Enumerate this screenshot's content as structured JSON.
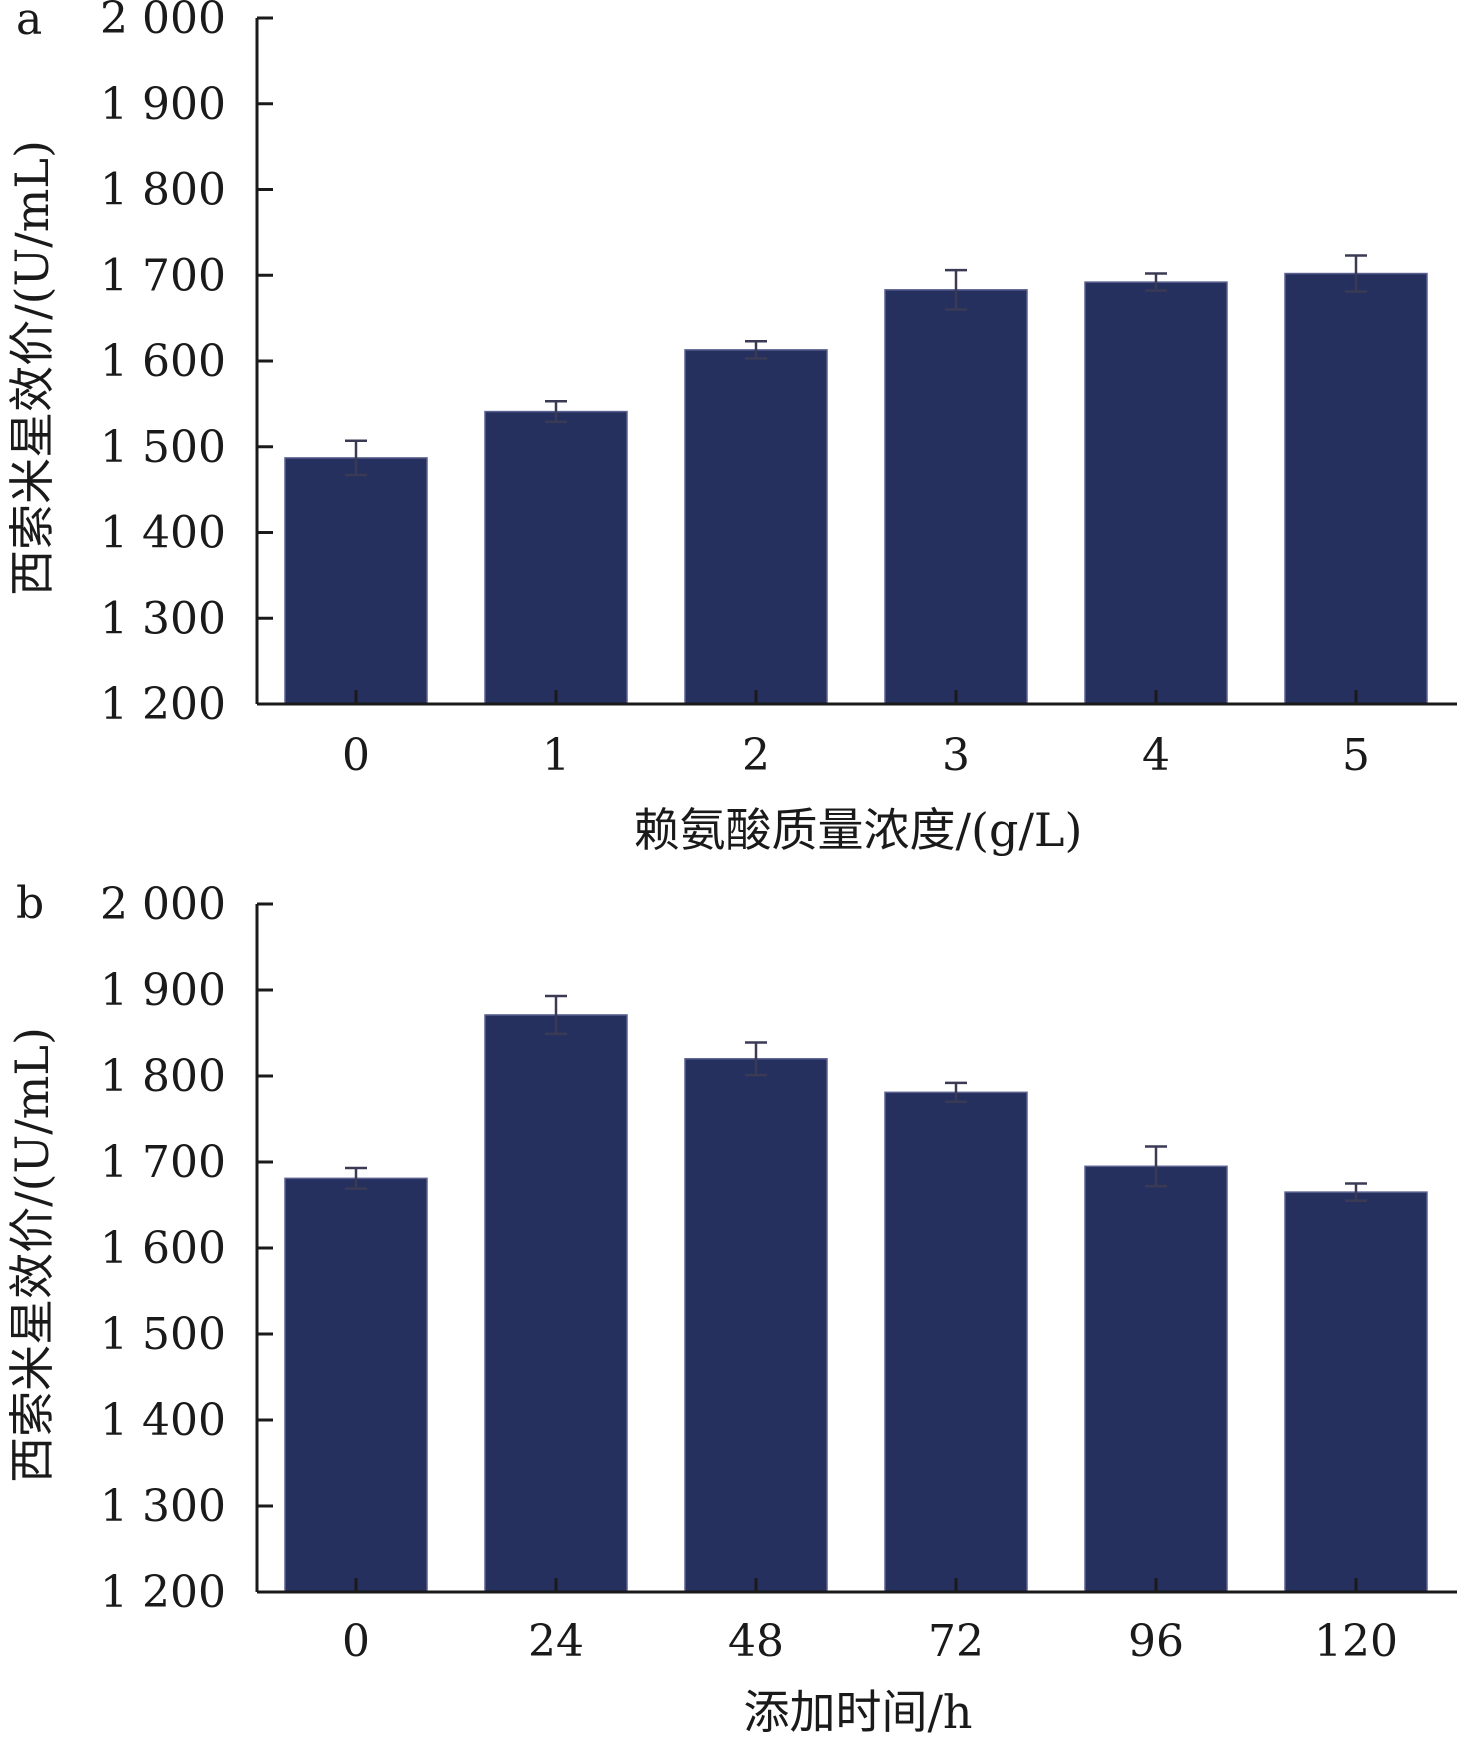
{
  "chart_data": [
    {
      "type": "bar",
      "panel_label": "a",
      "categories": [
        "0",
        "1",
        "2",
        "3",
        "4",
        "5"
      ],
      "values": [
        1487,
        1541,
        1613,
        1683,
        1692,
        1702
      ],
      "errors": [
        20,
        12,
        10,
        23,
        10,
        21
      ],
      "xlabel": "赖氨酸质量浓度/(g/L)",
      "ylabel": "西索米星效价/(U/mL)",
      "ylim": [
        1200,
        2000
      ],
      "yticks": [
        1200,
        1300,
        1400,
        1500,
        1600,
        1700,
        1800,
        1900,
        2000
      ],
      "ytick_labels": [
        "1 200",
        "1 300",
        "1 400",
        "1 500",
        "1 600",
        "1 700",
        "1 800",
        "1 900",
        "2 000"
      ],
      "bar_color": "#25305f",
      "grid": false
    },
    {
      "type": "bar",
      "panel_label": "b",
      "categories": [
        "0",
        "24",
        "48",
        "72",
        "96",
        "120"
      ],
      "values": [
        1681,
        1871,
        1820,
        1781,
        1695,
        1665
      ],
      "errors": [
        12,
        22,
        19,
        11,
        23,
        10
      ],
      "xlabel": "添加时间/h",
      "ylabel": "西索米星效价/(U/mL)",
      "ylim": [
        1200,
        2000
      ],
      "yticks": [
        1200,
        1300,
        1400,
        1500,
        1600,
        1700,
        1800,
        1900,
        2000
      ],
      "ytick_labels": [
        "1 200",
        "1 300",
        "1 400",
        "1 500",
        "1 600",
        "1 700",
        "1 800",
        "1 900",
        "2 000"
      ],
      "bar_color": "#25305f",
      "grid": false
    }
  ]
}
